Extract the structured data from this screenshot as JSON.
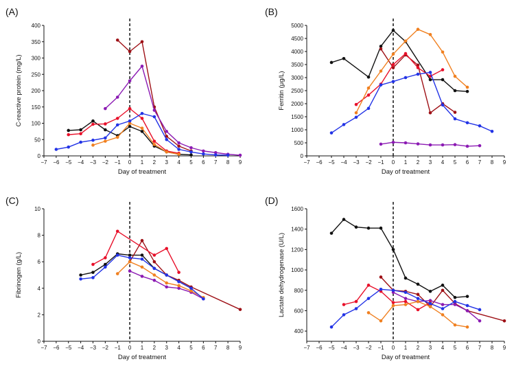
{
  "colors": {
    "black": "#111111",
    "purple": "#8b1ab3",
    "darkred": "#9e1016",
    "red": "#e8102a",
    "orange": "#f08020",
    "blue": "#2233e6"
  },
  "chart_data": [
    {
      "panel": "(A)",
      "type": "line",
      "xlabel": "Day of treatment",
      "ylabel": "C-reactive protein (mg/L)",
      "xlim": [
        -7,
        9
      ],
      "ylim": [
        0,
        400
      ],
      "xticks": [
        -7,
        -6,
        -5,
        -4,
        -3,
        -2,
        -1,
        0,
        1,
        2,
        3,
        4,
        5,
        6,
        7,
        8,
        9
      ],
      "yticks": [
        0,
        50,
        100,
        150,
        200,
        250,
        300,
        350,
        400
      ],
      "treatment_start_x": 0,
      "series": [
        {
          "color": "black",
          "points": [
            [
              -5,
              78
            ],
            [
              -4,
              80
            ],
            [
              -3,
              107
            ],
            [
              -2,
              80
            ],
            [
              -1,
              62
            ],
            [
              0,
              90
            ],
            [
              1,
              75
            ],
            [
              2,
              30
            ],
            [
              3,
              12
            ],
            [
              4,
              5
            ],
            [
              5,
              3
            ]
          ]
        },
        {
          "color": "darkred",
          "points": [
            [
              -1,
              355
            ],
            [
              0,
              320
            ],
            [
              1,
              350
            ],
            [
              2,
              150
            ],
            [
              3,
              60
            ],
            [
              4,
              30
            ],
            [
              5,
              15
            ]
          ]
        },
        {
          "color": "purple",
          "points": [
            [
              -2,
              145
            ],
            [
              -1,
              180
            ],
            [
              0,
              230
            ],
            [
              1,
              275
            ],
            [
              2,
              140
            ],
            [
              3,
              75
            ],
            [
              4,
              40
            ],
            [
              5,
              25
            ],
            [
              6,
              15
            ],
            [
              7,
              10
            ],
            [
              8,
              5
            ],
            [
              9,
              2
            ]
          ]
        },
        {
          "color": "red",
          "points": [
            [
              -5,
              65
            ],
            [
              -4,
              68
            ],
            [
              -3,
              97
            ],
            [
              -2,
              98
            ],
            [
              -1,
              115
            ],
            [
              0,
              145
            ],
            [
              1,
              115
            ],
            [
              2,
              45
            ],
            [
              3,
              15
            ],
            [
              4,
              8
            ]
          ]
        },
        {
          "color": "orange",
          "points": [
            [
              -3,
              33
            ],
            [
              -2,
              45
            ],
            [
              -1,
              57
            ],
            [
              0,
              100
            ],
            [
              1,
              85
            ],
            [
              2,
              35
            ],
            [
              3,
              12
            ],
            [
              4,
              5
            ]
          ]
        },
        {
          "color": "blue",
          "points": [
            [
              -6,
              20
            ],
            [
              -5,
              27
            ],
            [
              -4,
              42
            ],
            [
              -3,
              48
            ],
            [
              -2,
              55
            ],
            [
              -1,
              95
            ],
            [
              0,
              107
            ],
            [
              1,
              130
            ],
            [
              2,
              120
            ],
            [
              3,
              50
            ],
            [
              4,
              20
            ],
            [
              5,
              12
            ],
            [
              6,
              6
            ],
            [
              7,
              3
            ],
            [
              8,
              2
            ]
          ]
        }
      ]
    },
    {
      "panel": "(B)",
      "type": "line",
      "xlabel": "Day of treatment",
      "ylabel": "Ferritin (μg/L)",
      "xlim": [
        -7,
        9
      ],
      "ylim": [
        0,
        5000
      ],
      "xticks": [
        -7,
        -6,
        -5,
        -4,
        -3,
        -2,
        -1,
        0,
        1,
        2,
        3,
        4,
        5,
        6,
        7,
        8,
        9
      ],
      "yticks": [
        0,
        500,
        1000,
        1500,
        2000,
        2500,
        3000,
        3500,
        4000,
        4500,
        5000
      ],
      "treatment_start_x": 0,
      "series": [
        {
          "color": "black",
          "points": [
            [
              -5,
              3580
            ],
            [
              -4,
              3730
            ],
            [
              -2,
              3020
            ],
            [
              -1,
              4200
            ],
            [
              0,
              4810
            ],
            [
              1,
              4380
            ],
            [
              3,
              2920
            ],
            [
              4,
              2920
            ],
            [
              5,
              2500
            ],
            [
              6,
              2470
            ]
          ]
        },
        {
          "color": "darkred",
          "points": [
            [
              -1,
              4100
            ],
            [
              0,
              3380
            ],
            [
              1,
              3870
            ],
            [
              2,
              3480
            ],
            [
              3,
              1650
            ],
            [
              4,
              2000
            ],
            [
              5,
              1670
            ]
          ]
        },
        {
          "color": "purple",
          "points": [
            [
              -1,
              450
            ],
            [
              0,
              520
            ],
            [
              1,
              500
            ],
            [
              2,
              460
            ],
            [
              3,
              420
            ],
            [
              4,
              420
            ],
            [
              5,
              430
            ],
            [
              6,
              370
            ],
            [
              7,
              390
            ]
          ]
        },
        {
          "color": "red",
          "points": [
            [
              -3,
              1970
            ],
            [
              -2,
              2330
            ],
            [
              -1,
              2750
            ],
            [
              0,
              3500
            ],
            [
              1,
              3920
            ],
            [
              2,
              3380
            ],
            [
              3,
              3050
            ],
            [
              4,
              3300
            ]
          ]
        },
        {
          "color": "orange",
          "points": [
            [
              -3,
              1650
            ],
            [
              -2,
              2600
            ],
            [
              -1,
              3250
            ],
            [
              0,
              3900
            ],
            [
              1,
              4400
            ],
            [
              2,
              4850
            ],
            [
              3,
              4650
            ],
            [
              4,
              3980
            ],
            [
              5,
              3050
            ],
            [
              6,
              2630
            ]
          ]
        },
        {
          "color": "blue",
          "points": [
            [
              -5,
              880
            ],
            [
              -4,
              1200
            ],
            [
              -3,
              1480
            ],
            [
              -2,
              1820
            ],
            [
              -1,
              2720
            ],
            [
              0,
              2850
            ],
            [
              1,
              3000
            ],
            [
              2,
              3130
            ],
            [
              3,
              3200
            ],
            [
              4,
              1950
            ],
            [
              5,
              1420
            ],
            [
              6,
              1270
            ],
            [
              7,
              1150
            ],
            [
              8,
              940
            ]
          ]
        }
      ]
    },
    {
      "panel": "(C)",
      "type": "line",
      "xlabel": "Day of treatment",
      "ylabel": "Fibrinogen (g/L)",
      "xlim": [
        -7,
        9
      ],
      "ylim": [
        0,
        10
      ],
      "xticks": [
        -7,
        -6,
        -5,
        -4,
        -3,
        -2,
        -1,
        0,
        1,
        2,
        3,
        4,
        5,
        6,
        7,
        8,
        9
      ],
      "yticks": [
        0,
        2,
        4,
        6,
        8,
        10
      ],
      "treatment_start_x": 0,
      "series": [
        {
          "color": "black",
          "points": [
            [
              -4,
              5.0
            ],
            [
              -3,
              5.2
            ],
            [
              -2,
              5.8
            ],
            [
              -1,
              6.6
            ],
            [
              0,
              6.5
            ],
            [
              1,
              6.5
            ],
            [
              2,
              5.5
            ],
            [
              3,
              5.0
            ],
            [
              4,
              4.5
            ],
            [
              5,
              4.0
            ]
          ]
        },
        {
          "color": "darkred",
          "points": [
            [
              0,
              6.0
            ],
            [
              1,
              7.6
            ],
            [
              2,
              6.0
            ],
            [
              3,
              5.0
            ],
            [
              4,
              4.6
            ],
            [
              5,
              4.1
            ],
            [
              9,
              2.4
            ]
          ]
        },
        {
          "color": "purple",
          "points": [
            [
              0,
              5.3
            ],
            [
              1,
              4.9
            ],
            [
              2,
              4.6
            ],
            [
              3,
              4.1
            ],
            [
              4,
              4.0
            ],
            [
              5,
              3.7
            ],
            [
              6,
              3.2
            ]
          ]
        },
        {
          "color": "red",
          "points": [
            [
              -3,
              5.8
            ],
            [
              -2,
              6.3
            ],
            [
              -1,
              8.3
            ],
            [
              2,
              6.5
            ],
            [
              3,
              7.0
            ],
            [
              4,
              5.2
            ]
          ]
        },
        {
          "color": "orange",
          "points": [
            [
              -1,
              5.1
            ],
            [
              0,
              6.0
            ],
            [
              1,
              5.6
            ],
            [
              2,
              5.0
            ],
            [
              3,
              4.4
            ],
            [
              4,
              4.2
            ],
            [
              5,
              3.8
            ],
            [
              6,
              3.3
            ]
          ]
        },
        {
          "color": "blue",
          "points": [
            [
              -4,
              4.7
            ],
            [
              -3,
              4.8
            ],
            [
              -2,
              5.6
            ],
            [
              -1,
              6.5
            ],
            [
              0,
              6.3
            ],
            [
              1,
              6.2
            ],
            [
              2,
              5.5
            ],
            [
              3,
              5.0
            ],
            [
              4,
              4.5
            ],
            [
              5,
              4.0
            ],
            [
              6,
              3.2
            ]
          ]
        }
      ]
    },
    {
      "panel": "(D)",
      "type": "line",
      "xlabel": "Day of treatment",
      "ylabel": "Lactate dehydrogenase (U/L)",
      "xlim": [
        -7,
        9
      ],
      "ylim": [
        300,
        1600
      ],
      "xticks": [
        -7,
        -6,
        -5,
        -4,
        -3,
        -2,
        -1,
        0,
        1,
        2,
        3,
        4,
        5,
        6,
        7,
        8,
        9
      ],
      "yticks": [
        400,
        600,
        800,
        1000,
        1200,
        1400,
        1600
      ],
      "treatment_start_x": 0,
      "series": [
        {
          "color": "black",
          "points": [
            [
              -5,
              1360
            ],
            [
              -4,
              1495
            ],
            [
              -3,
              1420
            ],
            [
              -2,
              1410
            ],
            [
              -1,
              1410
            ],
            [
              0,
              1200
            ],
            [
              1,
              920
            ],
            [
              2,
              860
            ],
            [
              3,
              790
            ],
            [
              4,
              850
            ],
            [
              5,
              730
            ],
            [
              6,
              740
            ]
          ]
        },
        {
          "color": "darkred",
          "points": [
            [
              -1,
              930
            ],
            [
              0,
              800
            ],
            [
              1,
              790
            ],
            [
              2,
              760
            ],
            [
              3,
              640
            ],
            [
              4,
              800
            ],
            [
              5,
              670
            ],
            [
              6,
              600
            ],
            [
              9,
              500
            ]
          ]
        },
        {
          "color": "purple",
          "points": [
            [
              0,
              780
            ],
            [
              1,
              720
            ],
            [
              2,
              690
            ],
            [
              3,
              700
            ],
            [
              4,
              660
            ],
            [
              5,
              660
            ],
            [
              6,
              600
            ],
            [
              7,
              500
            ]
          ]
        },
        {
          "color": "red",
          "points": [
            [
              -4,
              660
            ],
            [
              -3,
              690
            ],
            [
              -2,
              850
            ],
            [
              -1,
              790
            ],
            [
              0,
              680
            ],
            [
              1,
              690
            ],
            [
              2,
              610
            ],
            [
              3,
              680
            ]
          ]
        },
        {
          "color": "orange",
          "points": [
            [
              -2,
              580
            ],
            [
              -1,
              500
            ],
            [
              0,
              650
            ],
            [
              1,
              660
            ],
            [
              2,
              690
            ],
            [
              3,
              640
            ],
            [
              4,
              560
            ],
            [
              5,
              460
            ],
            [
              6,
              440
            ]
          ]
        },
        {
          "color": "blue",
          "points": [
            [
              -5,
              440
            ],
            [
              -4,
              560
            ],
            [
              -3,
              620
            ],
            [
              -2,
              720
            ],
            [
              -1,
              810
            ],
            [
              0,
              800
            ],
            [
              1,
              780
            ],
            [
              2,
              720
            ],
            [
              3,
              670
            ],
            [
              4,
              620
            ],
            [
              5,
              690
            ],
            [
              6,
              650
            ],
            [
              7,
              610
            ]
          ]
        }
      ]
    }
  ]
}
